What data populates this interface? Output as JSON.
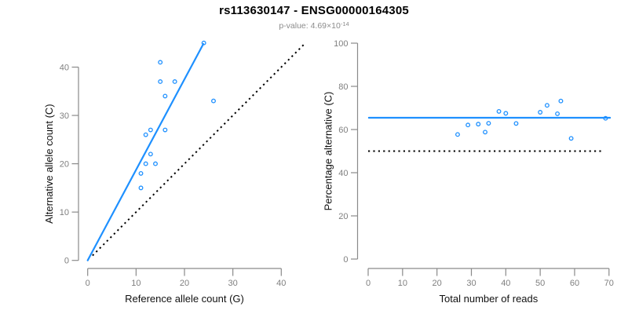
{
  "header": {
    "title": "rs113630147 - ENSG00000164305",
    "pvalue_prefix": "p-value: 4.69×10",
    "pvalue_exponent": "-14"
  },
  "colors": {
    "accent_blue": "#1E90FF",
    "dotted_black": "#000000",
    "axis_gray": "#8A8A8A",
    "tick_label_gray": "#7F7F7F",
    "axis_title_color": "#111111",
    "title_color": "#000000",
    "subtitle_gray": "#8C8C8C",
    "background": "#FFFFFF"
  },
  "chart_data": [
    {
      "type": "scatter",
      "panel": "left",
      "xlabel": "Reference allele count (G)",
      "ylabel": "Alternative allele count (C)",
      "xticks": [
        0,
        10,
        20,
        30,
        40
      ],
      "yticks": [
        0,
        10,
        20,
        30,
        40
      ],
      "xlim": [
        0,
        45
      ],
      "ylim": [
        0,
        45
      ],
      "grid": false,
      "points": [
        [
          24,
          45
        ],
        [
          15,
          41
        ],
        [
          15,
          37
        ],
        [
          18,
          37
        ],
        [
          16,
          34
        ],
        [
          26,
          33
        ],
        [
          13,
          27
        ],
        [
          16,
          27
        ],
        [
          12,
          26
        ],
        [
          13,
          22
        ],
        [
          12,
          20
        ],
        [
          14,
          20
        ],
        [
          11,
          18
        ],
        [
          11,
          15
        ]
      ],
      "lines": [
        {
          "name": "identity-line",
          "style": "dotted",
          "x1": 1,
          "y1": 1,
          "x2": 45,
          "y2": 45
        },
        {
          "name": "fit-line",
          "style": "solid",
          "x1": 0,
          "y1": 0,
          "x2": 23.9,
          "y2": 44.8
        }
      ]
    },
    {
      "type": "scatter",
      "panel": "right",
      "xlabel": "Total number of reads",
      "ylabel": "Percentage alternative (C)",
      "xticks": [
        0,
        10,
        20,
        30,
        40,
        50,
        60,
        70
      ],
      "yticks": [
        0,
        20,
        40,
        60,
        80,
        100
      ],
      "xlim": [
        0,
        71
      ],
      "ylim": [
        0,
        100
      ],
      "grid": false,
      "points": [
        [
          26,
          57.7
        ],
        [
          29,
          62.1
        ],
        [
          32,
          62.5
        ],
        [
          34,
          58.8
        ],
        [
          35,
          62.9
        ],
        [
          38,
          68.4
        ],
        [
          40,
          67.5
        ],
        [
          43,
          62.8
        ],
        [
          50,
          68.0
        ],
        [
          52,
          71.2
        ],
        [
          55,
          67.3
        ],
        [
          56,
          73.2
        ],
        [
          59,
          55.9
        ],
        [
          69,
          65.2
        ]
      ],
      "lines": [
        {
          "name": "fifty-percent-line",
          "style": "dotted",
          "x1": 0,
          "y1": 50,
          "x2": 68.2,
          "y2": 50
        },
        {
          "name": "mean-line",
          "style": "solid",
          "x1": 0.2,
          "y1": 65.45,
          "x2": 70.3,
          "y2": 65.45
        }
      ]
    }
  ]
}
